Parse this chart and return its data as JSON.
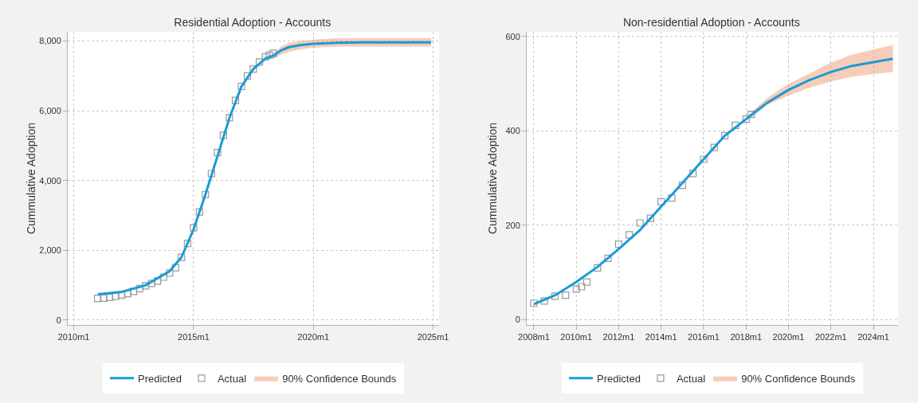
{
  "chart_data": [
    {
      "type": "line",
      "title": "Residential Adoption - Accounts",
      "ylabel": "Cummulative Adoption",
      "xlim": [
        "2009-10",
        "2025-04"
      ],
      "xticks": [
        {
          "value": "2010-01",
          "label": "2010m1"
        },
        {
          "value": "2015-01",
          "label": "2015m1"
        },
        {
          "value": "2020-01",
          "label": "2020m1"
        },
        {
          "value": "2025-01",
          "label": "2025m1"
        }
      ],
      "ylim": [
        -140,
        8265
      ],
      "yticks": [
        0,
        {
          "value": 2000,
          "label": "2,000"
        },
        {
          "value": 4000,
          "label": "4,000"
        },
        {
          "value": 6000,
          "label": "6,000"
        },
        {
          "value": 8000,
          "label": "8,000"
        }
      ],
      "grid": true,
      "legend": "bottom",
      "series": [
        {
          "name": "Predicted",
          "color": "#1a9bd7",
          "marker": "none",
          "line_style": "solid",
          "x": [
            "2011-01",
            "2012-01",
            "2013-01",
            "2014-01",
            "2014-07",
            "2015-01",
            "2015-07",
            "2016-01",
            "2016-07",
            "2017-01",
            "2017-07",
            "2018-01",
            "2018-05",
            "2018-09",
            "2019-01",
            "2019-07",
            "2020-01",
            "2021-01",
            "2022-01",
            "2024-12"
          ],
          "values": [
            740,
            810,
            1000,
            1400,
            1800,
            2600,
            3600,
            4700,
            5800,
            6700,
            7200,
            7500,
            7580,
            7740,
            7830,
            7890,
            7920,
            7950,
            7960,
            7960
          ],
          "lower": [
            null,
            null,
            null,
            null,
            null,
            null,
            null,
            null,
            null,
            null,
            null,
            null,
            7480,
            7620,
            7700,
            7770,
            7810,
            7840,
            7840,
            7840
          ],
          "upper": [
            null,
            null,
            null,
            null,
            null,
            null,
            null,
            null,
            null,
            null,
            null,
            null,
            7650,
            7850,
            7950,
            8010,
            8040,
            8080,
            8090,
            8090
          ]
        },
        {
          "name": "Actual",
          "type": "scatter",
          "color": "#999999",
          "marker": "square",
          "x": [
            "2011-01",
            "2011-04",
            "2011-07",
            "2011-10",
            "2012-01",
            "2012-04",
            "2012-07",
            "2012-10",
            "2013-01",
            "2013-04",
            "2013-07",
            "2013-10",
            "2014-01",
            "2014-04",
            "2014-07",
            "2014-10",
            "2015-01",
            "2015-04",
            "2015-07",
            "2015-10",
            "2016-01",
            "2016-04",
            "2016-07",
            "2016-10",
            "2017-01",
            "2017-04",
            "2017-07",
            "2017-10",
            "2018-01",
            "2018-03",
            "2018-05"
          ],
          "values": [
            620,
            630,
            650,
            680,
            720,
            760,
            820,
            900,
            980,
            1050,
            1120,
            1230,
            1350,
            1500,
            1800,
            2200,
            2650,
            3100,
            3600,
            4200,
            4800,
            5300,
            5800,
            6300,
            6700,
            7000,
            7200,
            7400,
            7550,
            7600,
            7650
          ]
        },
        {
          "name": "90% Confidence Bounds",
          "type": "area",
          "color": "#e8824f"
        }
      ]
    },
    {
      "type": "line",
      "title": "Non-residential Adoption - Accounts",
      "ylabel": "Cummulative Adoption",
      "xlim": [
        "2007-09",
        "2025-03"
      ],
      "xticks": [
        {
          "value": "2008-01",
          "label": "2008m1"
        },
        {
          "value": "2010-01",
          "label": "2010m1"
        },
        {
          "value": "2012-01",
          "label": "2012m1"
        },
        {
          "value": "2014-01",
          "label": "2014m1"
        },
        {
          "value": "2016-01",
          "label": "2016m1"
        },
        {
          "value": "2018-01",
          "label": "2018m1"
        },
        {
          "value": "2020-01",
          "label": "2020m1"
        },
        {
          "value": "2022-01",
          "label": "2022m1"
        },
        {
          "value": "2024-01",
          "label": "2024m1"
        }
      ],
      "ylim": [
        -11,
        610
      ],
      "yticks": [
        0,
        200,
        400,
        600
      ],
      "grid": true,
      "legend": "bottom",
      "series": [
        {
          "name": "Predicted",
          "color": "#1a9bd7",
          "marker": "none",
          "line_style": "solid",
          "x": [
            "2008-01",
            "2009-01",
            "2010-01",
            "2011-01",
            "2012-01",
            "2013-01",
            "2014-01",
            "2015-01",
            "2016-01",
            "2017-01",
            "2018-01",
            "2018-04",
            "2019-01",
            "2020-01",
            "2021-01",
            "2022-01",
            "2023-01",
            "2024-12"
          ],
          "values": [
            33,
            52,
            80,
            112,
            150,
            190,
            240,
            290,
            340,
            390,
            425,
            434,
            460,
            487,
            508,
            525,
            538,
            553
          ],
          "lower": [
            null,
            null,
            null,
            null,
            null,
            null,
            null,
            null,
            null,
            null,
            null,
            428,
            455,
            475,
            492,
            505,
            515,
            525
          ],
          "upper": [
            null,
            null,
            null,
            null,
            null,
            null,
            null,
            null,
            null,
            null,
            null,
            440,
            470,
            500,
            522,
            545,
            562,
            582
          ]
        },
        {
          "name": "Actual",
          "type": "scatter",
          "color": "#999999",
          "marker": "square",
          "x": [
            "2008-01",
            "2008-07",
            "2009-01",
            "2009-07",
            "2010-01",
            "2010-04",
            "2010-07",
            "2011-01",
            "2011-07",
            "2012-01",
            "2012-07",
            "2013-01",
            "2013-07",
            "2014-01",
            "2014-07",
            "2015-01",
            "2015-07",
            "2016-01",
            "2016-07",
            "2017-01",
            "2017-07",
            "2018-01",
            "2018-04"
          ],
          "values": [
            35,
            40,
            50,
            52,
            65,
            70,
            80,
            110,
            130,
            160,
            180,
            205,
            215,
            250,
            258,
            285,
            310,
            340,
            365,
            390,
            412,
            425,
            435
          ]
        },
        {
          "name": "90% Confidence Bounds",
          "type": "area",
          "color": "#e8824f"
        }
      ]
    }
  ]
}
